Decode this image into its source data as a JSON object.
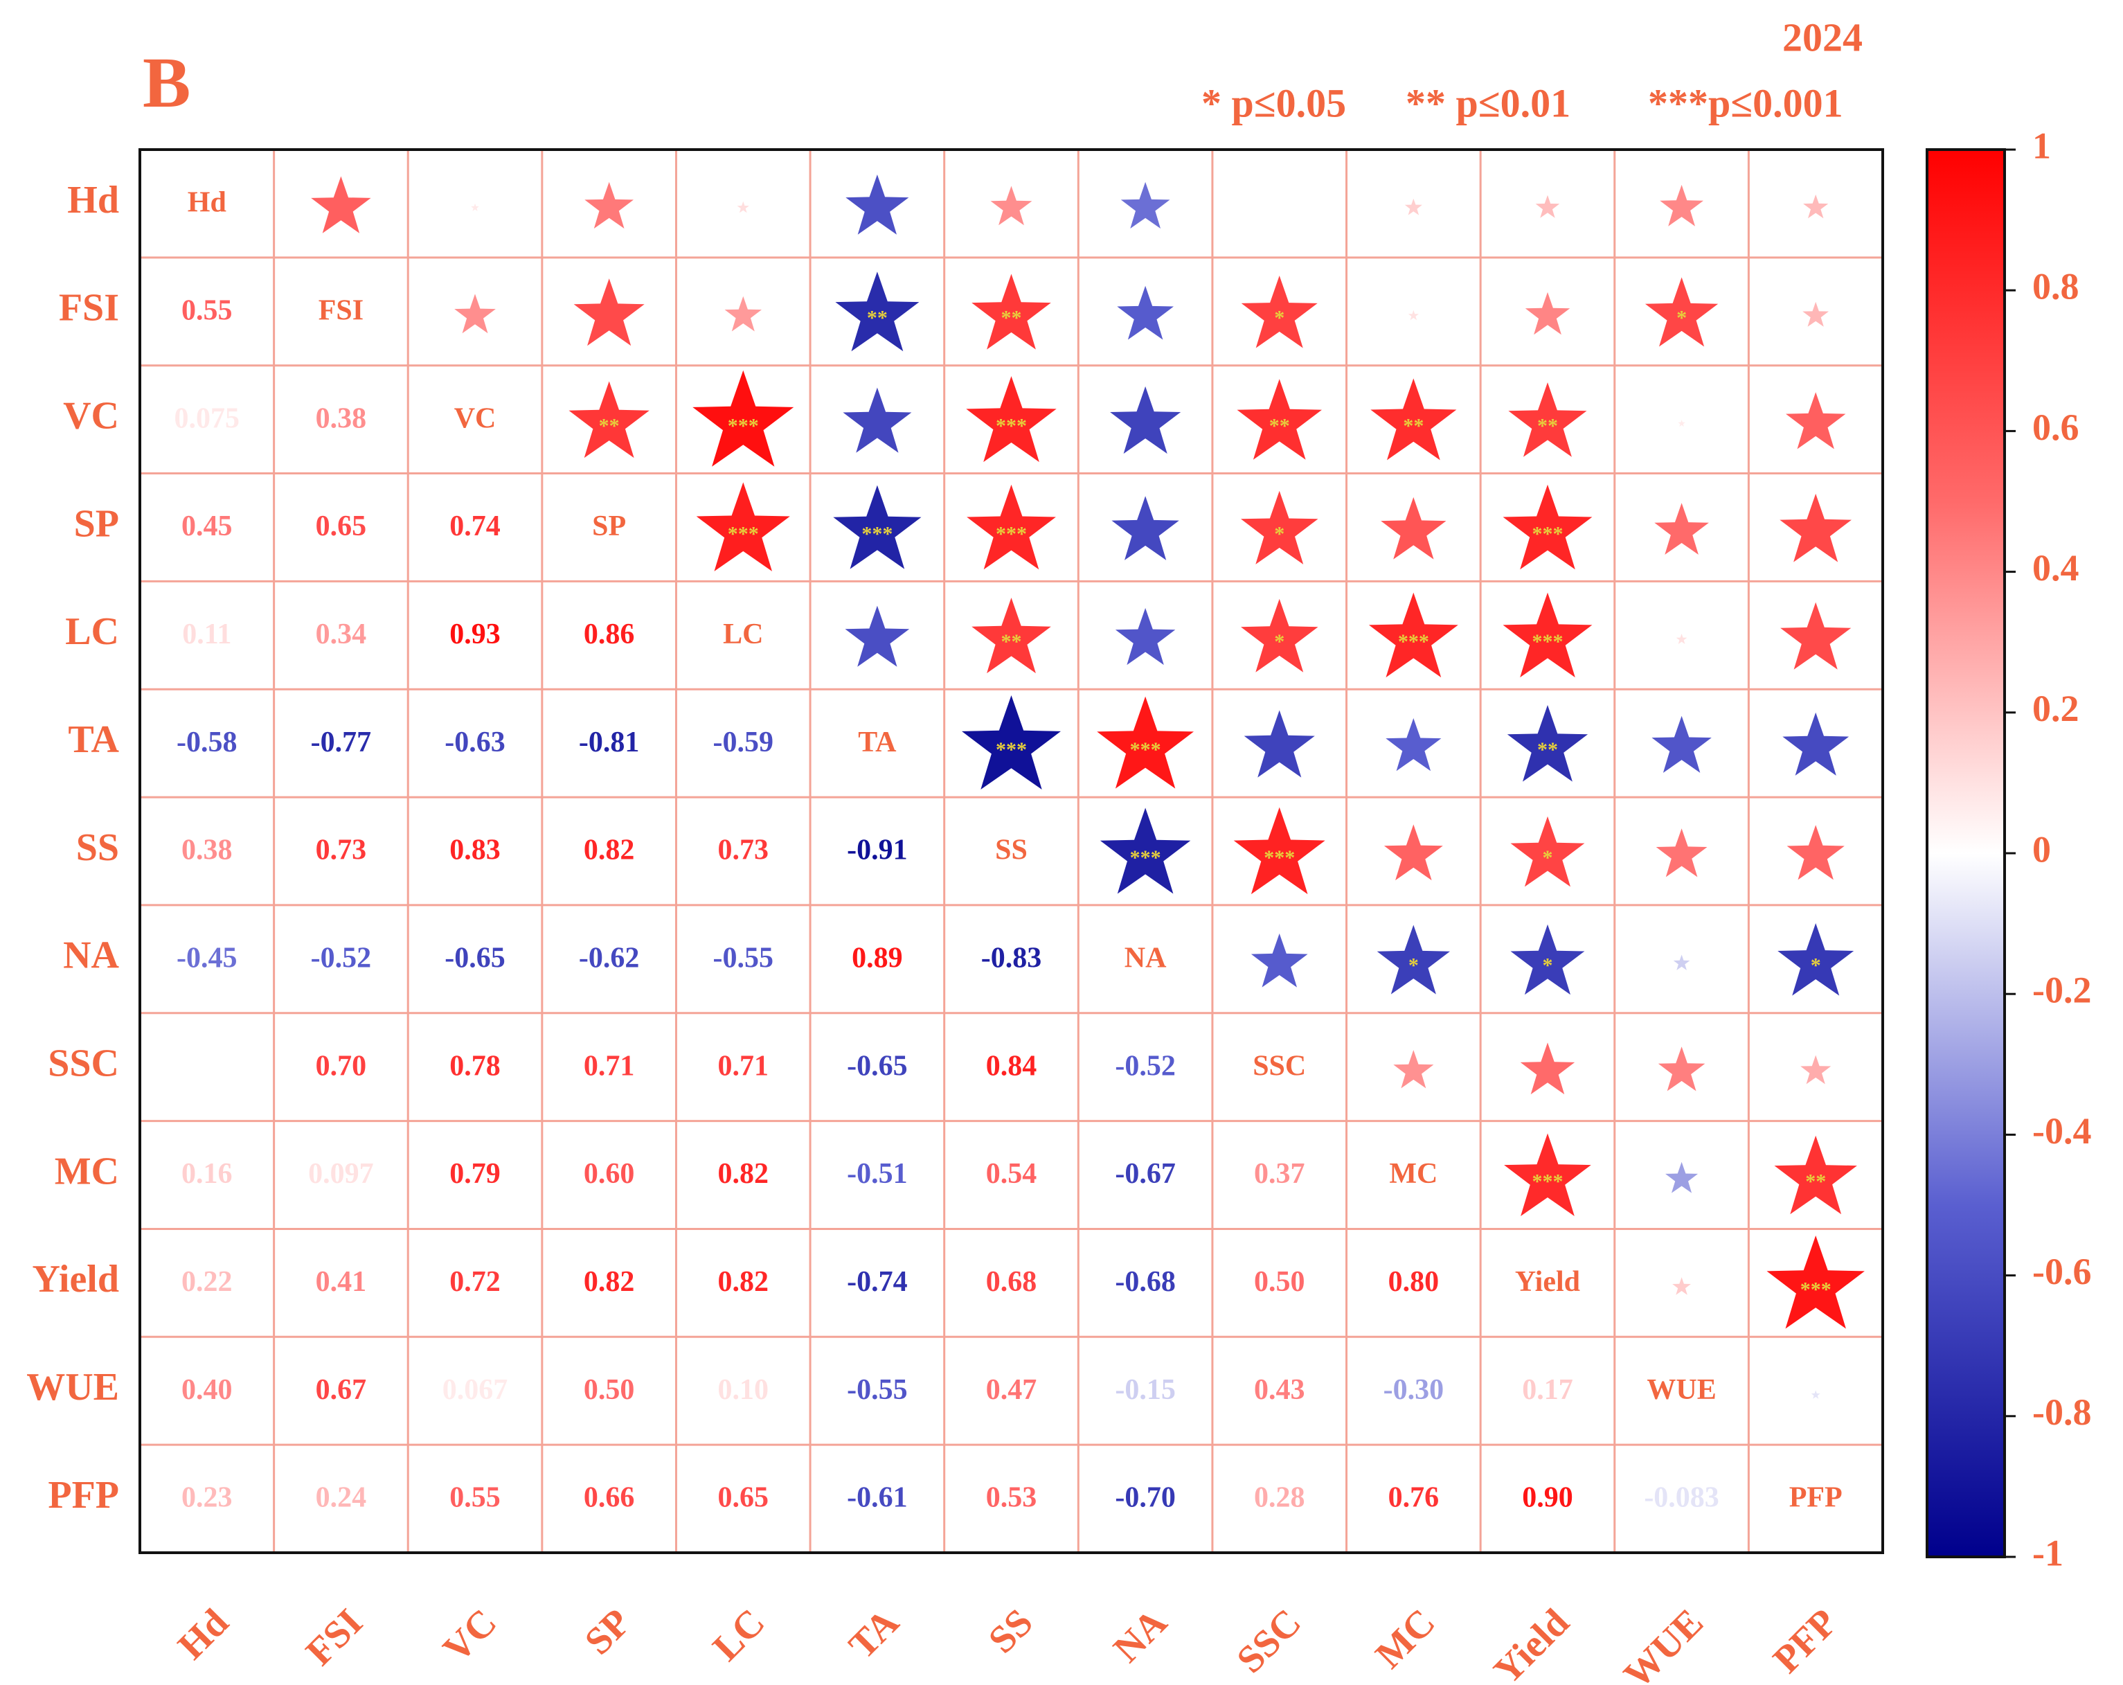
{
  "chart_data": {
    "type": "corrplot",
    "panel_label": "B",
    "title": "2024",
    "legend": [
      "* p≤0.05",
      "** p≤0.01",
      "***p≤0.001"
    ],
    "variables": [
      "Hd",
      "FSI",
      "VC",
      "SP",
      "LC",
      "TA",
      "SS",
      "NA",
      "SSC",
      "MC",
      "Yield",
      "WUE",
      "PFP"
    ],
    "values": [
      [],
      [
        0.55
      ],
      [
        0.075,
        0.38
      ],
      [
        0.45,
        0.65,
        0.74
      ],
      [
        0.11,
        0.34,
        0.93,
        0.86
      ],
      [
        -0.58,
        -0.77,
        -0.63,
        -0.81,
        -0.59
      ],
      [
        0.38,
        0.73,
        0.83,
        0.82,
        0.73,
        -0.91
      ],
      [
        -0.45,
        -0.52,
        -0.65,
        -0.62,
        -0.55,
        0.89,
        -0.83
      ],
      [
        null,
        0.7,
        0.78,
        0.71,
        0.71,
        -0.65,
        0.84,
        -0.52
      ],
      [
        0.16,
        0.097,
        0.79,
        0.6,
        0.82,
        -0.51,
        0.54,
        -0.67,
        0.37
      ],
      [
        0.22,
        0.41,
        0.72,
        0.82,
        0.82,
        -0.74,
        0.68,
        -0.68,
        0.5,
        0.8
      ],
      [
        0.4,
        0.67,
        0.067,
        0.5,
        0.1,
        -0.55,
        0.47,
        -0.15,
        0.43,
        -0.3,
        0.17
      ],
      [
        0.23,
        0.24,
        0.55,
        0.66,
        0.65,
        -0.61,
        0.53,
        -0.7,
        0.28,
        0.76,
        0.9,
        -0.083
      ]
    ],
    "value_labels": [
      [],
      [
        "0.55"
      ],
      [
        "0.075",
        "0.38"
      ],
      [
        "0.45",
        "0.65",
        "0.74"
      ],
      [
        "0.11",
        "0.34",
        "0.93",
        "0.86"
      ],
      [
        "-0.58",
        "-0.77",
        "-0.63",
        "-0.81",
        "-0.59"
      ],
      [
        "0.38",
        "0.73",
        "0.83",
        "0.82",
        "0.73",
        "-0.91"
      ],
      [
        "-0.45",
        "-0.52",
        "-0.65",
        "-0.62",
        "-0.55",
        "0.89",
        "-0.83"
      ],
      [
        null,
        "0.70",
        "0.78",
        "0.71",
        "0.71",
        "-0.65",
        "0.84",
        "-0.52"
      ],
      [
        "0.16",
        "0.097",
        "0.79",
        "0.60",
        "0.82",
        "-0.51",
        "0.54",
        "-0.67",
        "0.37"
      ],
      [
        "0.22",
        "0.41",
        "0.72",
        "0.82",
        "0.82",
        "-0.74",
        "0.68",
        "-0.68",
        "0.50",
        "0.80"
      ],
      [
        "0.40",
        "0.67",
        "0.067",
        "0.50",
        "0.10",
        "-0.55",
        "0.47",
        "-0.15",
        "0.43",
        "-0.30",
        "0.17"
      ],
      [
        "0.23",
        "0.24",
        "0.55",
        "0.66",
        "0.65",
        "-0.61",
        "0.53",
        "-0.70",
        "0.28",
        "0.76",
        "0.90",
        "-0.083"
      ]
    ],
    "stars": [
      [],
      [
        null
      ],
      [
        null,
        null
      ],
      [
        null,
        null,
        "**"
      ],
      [
        null,
        null,
        "***",
        "***"
      ],
      [
        null,
        "**",
        null,
        "***",
        null
      ],
      [
        null,
        "**",
        "***",
        "***",
        "**",
        "***"
      ],
      [
        null,
        null,
        null,
        null,
        null,
        "***",
        "***"
      ],
      [
        null,
        "*",
        "**",
        "*",
        "*",
        null,
        "***",
        null
      ],
      [
        null,
        null,
        "**",
        null,
        "***",
        null,
        null,
        "*",
        null
      ],
      [
        null,
        null,
        "**",
        "***",
        "***",
        "**",
        "*",
        "*",
        null,
        "***"
      ],
      [
        null,
        "*",
        null,
        null,
        null,
        null,
        null,
        null,
        null,
        null,
        null
      ],
      [
        null,
        null,
        null,
        null,
        null,
        null,
        null,
        "*",
        null,
        "**",
        "***",
        null
      ]
    ],
    "colors": [
      "#00008c",
      "#5a5fd0",
      "#ffffff",
      "#ff6a6a",
      "#ff0000"
    ],
    "label_color": "#f2663f",
    "grid_color": "#f4a497",
    "zlim": [
      -1,
      1
    ],
    "zticks": [
      1,
      0.8,
      0.6,
      0.4,
      0.2,
      0,
      -0.2,
      -0.4,
      -0.6,
      -0.8,
      -1
    ]
  }
}
